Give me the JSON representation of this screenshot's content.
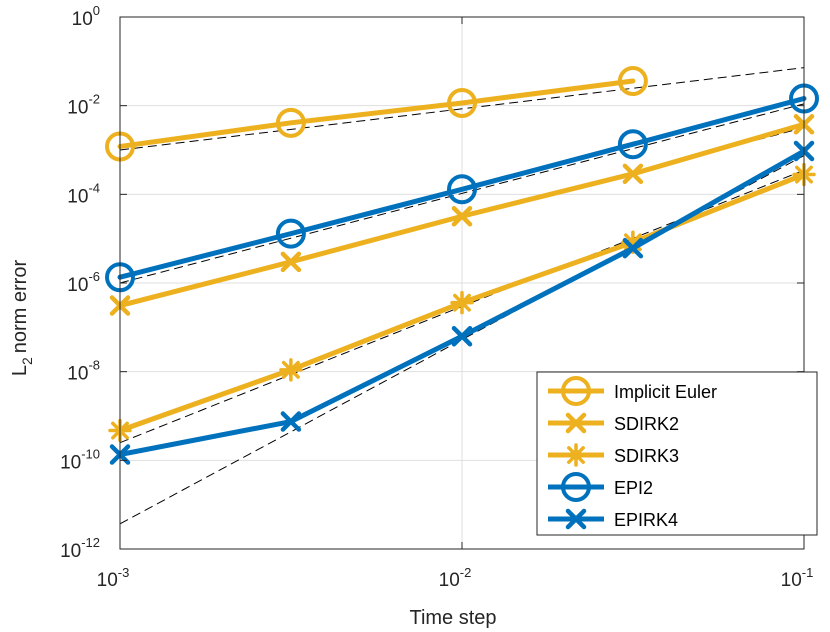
{
  "chart_data": {
    "type": "line",
    "xscale": "log",
    "yscale": "log",
    "xlim": [
      0.001,
      0.1
    ],
    "ylim": [
      1e-12,
      1
    ],
    "xlabel": "Time step",
    "ylabel": "norm error",
    "ylabel_prefix": "L",
    "ylabel_subscript": "2",
    "grid": true,
    "legend_position": "bottom-right",
    "x_ticks": [
      {
        "base": "10",
        "exp": "-3",
        "value": 0.001
      },
      {
        "base": "10",
        "exp": "-2",
        "value": 0.01
      },
      {
        "base": "10",
        "exp": "-1",
        "value": 0.1
      }
    ],
    "y_ticks": [
      {
        "base": "10",
        "exp": "-12",
        "value": 1e-12
      },
      {
        "base": "10",
        "exp": "-10",
        "value": 1e-10
      },
      {
        "base": "10",
        "exp": "-8",
        "value": 1e-08
      },
      {
        "base": "10",
        "exp": "-6",
        "value": 1e-06
      },
      {
        "base": "10",
        "exp": "-4",
        "value": 0.0001
      },
      {
        "base": "10",
        "exp": "-2",
        "value": 0.01
      },
      {
        "base": "10",
        "exp": "0",
        "value": 1
      }
    ],
    "series": [
      {
        "name": "Implicit Euler",
        "color": "#EDB120",
        "marker": "circle",
        "x": [
          0.001,
          0.00316,
          0.01,
          0.0316
        ],
        "y": [
          0.0012,
          0.0041,
          0.0115,
          0.036
        ]
      },
      {
        "name": "SDIRK2",
        "color": "#EDB120",
        "marker": "x",
        "x": [
          0.001,
          0.00316,
          0.01,
          0.0316,
          0.1
        ],
        "y": [
          3.1e-07,
          3e-06,
          3.2e-05,
          0.00029,
          0.0038
        ]
      },
      {
        "name": "SDIRK3",
        "color": "#EDB120",
        "marker": "star",
        "x": [
          0.001,
          0.00316,
          0.01,
          0.0316,
          0.1
        ],
        "y": [
          4.7e-10,
          1.1e-08,
          3.6e-07,
          8.3e-06,
          0.00028
        ]
      },
      {
        "name": "EPI2",
        "color": "#0072BD",
        "marker": "circle",
        "x": [
          0.001,
          0.00316,
          0.01,
          0.0316,
          0.1
        ],
        "y": [
          1.35e-06,
          1.3e-05,
          0.00013,
          0.00135,
          0.0145
        ]
      },
      {
        "name": "EPIRK4",
        "color": "#0072BD",
        "marker": "x",
        "x": [
          0.001,
          0.00316,
          0.01,
          0.0316,
          0.1
        ],
        "y": [
          1.35e-10,
          7.5e-10,
          6.3e-08,
          6.1e-06,
          0.00095
        ]
      }
    ],
    "reference_lines": [
      {
        "order": 1,
        "x": [
          0.001,
          0.1
        ],
        "y": [
          0.001,
          0.072
        ]
      },
      {
        "order": 2,
        "x": [
          0.001,
          0.1
        ],
        "y": [
          1e-06,
          0.011
        ]
      },
      {
        "order": 2,
        "x": [
          0.001,
          0.1
        ],
        "y": [
          2.9e-07,
          0.0032
        ]
      },
      {
        "order": 3,
        "x": [
          0.001,
          0.1
        ],
        "y": [
          2.5e-10,
          0.00035
        ]
      },
      {
        "order": 4,
        "x": [
          0.001,
          0.1
        ],
        "y": [
          3.7e-12,
          0.00075
        ]
      }
    ]
  }
}
